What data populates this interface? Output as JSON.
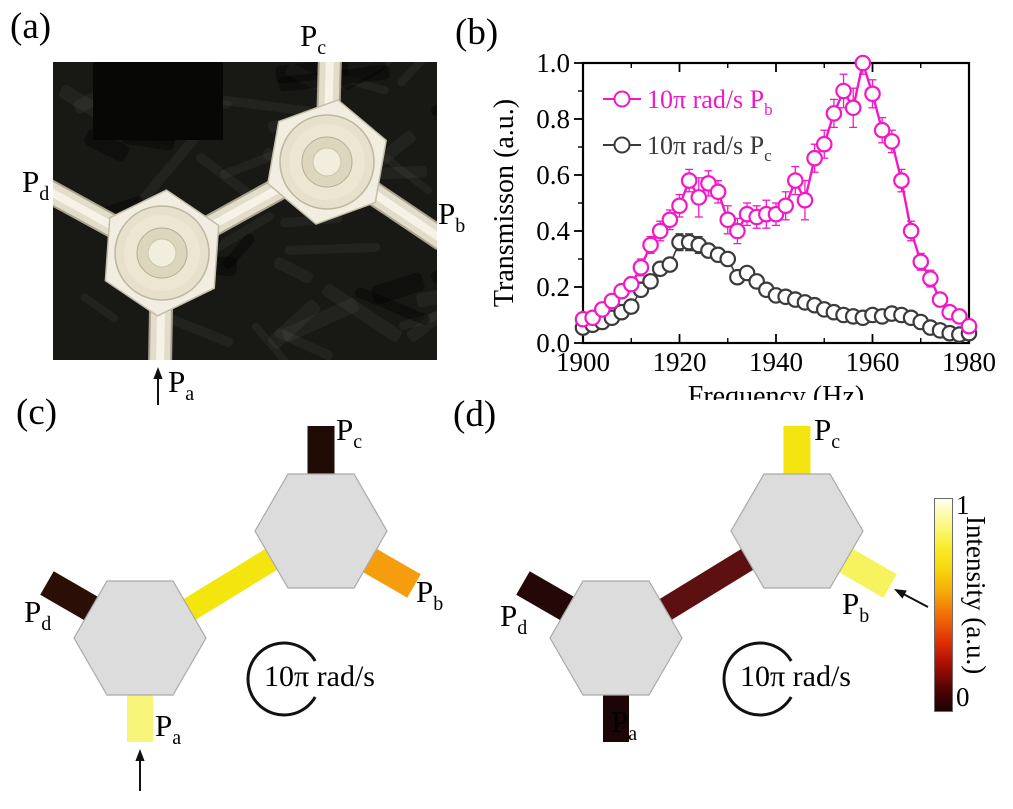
{
  "figure": {
    "panel_a": {
      "label": "(a)",
      "ports": {
        "pc": {
          "base": "P",
          "sub": "c"
        },
        "pd": {
          "base": "P",
          "sub": "d"
        },
        "pb": {
          "base": "P",
          "sub": "b"
        },
        "pa": {
          "base": "P",
          "sub": "a"
        }
      }
    },
    "panel_b": {
      "label": "(b)"
    },
    "panel_c": {
      "label": "(c)",
      "rotation_label": "10π rad/s",
      "hex_color": "#dcdcdc",
      "hex_stroke": "#a9a9a9",
      "link_color": "#f3e50d",
      "ports": {
        "pc": {
          "base": "P",
          "sub": "c",
          "color": "#200b06"
        },
        "pd": {
          "base": "P",
          "sub": "d",
          "color": "#2b0f07"
        },
        "pb": {
          "base": "P",
          "sub": "b",
          "color": "#f69d0e"
        },
        "pa": {
          "base": "P",
          "sub": "a",
          "color": "#f7f67b"
        }
      }
    },
    "panel_d": {
      "label": "(d)",
      "rotation_label": "10π rad/s",
      "hex_color": "#dcdcdc",
      "hex_stroke": "#a9a9a9",
      "link_color": "#5c1010",
      "ports": {
        "pc": {
          "base": "P",
          "sub": "c",
          "color": "#f3e412"
        },
        "pd": {
          "base": "P",
          "sub": "d",
          "color": "#260707"
        },
        "pb": {
          "base": "P",
          "sub": "b",
          "color": "#f6f35e"
        },
        "pa": {
          "base": "P",
          "sub": "a",
          "color": "#1c0505"
        }
      }
    },
    "colorbar": {
      "title": "Intensity (a.u.)",
      "top_tick": "1",
      "bottom_tick": "0",
      "gradient_top_to_bottom": [
        "#fffef2",
        "#fdf98e",
        "#f9ee2e",
        "#f6d60e",
        "#f5a807",
        "#ef6a06",
        "#e23305",
        "#a90f04",
        "#560404",
        "#1a0101"
      ]
    }
  },
  "chart_data": {
    "type": "line",
    "title": "",
    "xlabel": "Frequency (Hz)",
    "ylabel": "Transmisson (a.u.)",
    "xlim": [
      1900,
      1980
    ],
    "ylim": [
      0.0,
      1.0
    ],
    "grid": false,
    "legend_position": "top-left-inside",
    "x_tick_labels": [
      "1900",
      "1920",
      "1940",
      "1960",
      "1980"
    ],
    "x_major_ticks": [
      1900,
      1920,
      1940,
      1960,
      1980
    ],
    "x_minor_ticks": [
      1910,
      1930,
      1950,
      1970
    ],
    "y_tick_labels": [
      "0.0",
      "0.2",
      "0.4",
      "0.6",
      "0.8",
      "1.0"
    ],
    "y_major_ticks": [
      0.0,
      0.2,
      0.4,
      0.6,
      0.8,
      1.0
    ],
    "y_minor_ticks": [
      0.1,
      0.3,
      0.5,
      0.7,
      0.9
    ],
    "x": [
      1900,
      1902,
      1904,
      1906,
      1908,
      1910,
      1912,
      1914,
      1916,
      1918,
      1920,
      1922,
      1924,
      1926,
      1928,
      1930,
      1932,
      1934,
      1936,
      1938,
      1940,
      1942,
      1944,
      1946,
      1948,
      1950,
      1952,
      1954,
      1956,
      1958,
      1960,
      1962,
      1964,
      1966,
      1968,
      1970,
      1972,
      1974,
      1976,
      1978,
      1980
    ],
    "series": [
      {
        "name": "10π rad/s P_b",
        "label_base": "10π rad/s P",
        "label_sub": "b",
        "color": "#f318c6",
        "marker": "open-circle",
        "values": [
          0.085,
          0.09,
          0.12,
          0.15,
          0.185,
          0.21,
          0.27,
          0.35,
          0.4,
          0.44,
          0.49,
          0.58,
          0.52,
          0.57,
          0.54,
          0.44,
          0.4,
          0.46,
          0.45,
          0.46,
          0.46,
          0.49,
          0.58,
          0.51,
          0.66,
          0.71,
          0.82,
          0.9,
          0.84,
          1.0,
          0.89,
          0.76,
          0.72,
          0.58,
          0.4,
          0.29,
          0.23,
          0.155,
          0.11,
          0.095,
          0.06
        ],
        "errors": [
          0.015,
          0.015,
          0.02,
          0.02,
          0.02,
          0.025,
          0.03,
          0.03,
          0.035,
          0.035,
          0.04,
          0.04,
          0.07,
          0.045,
          0.04,
          0.05,
          0.045,
          0.04,
          0.04,
          0.05,
          0.04,
          0.05,
          0.05,
          0.07,
          0.05,
          0.05,
          0.05,
          0.06,
          0.07,
          0.04,
          0.05,
          0.045,
          0.04,
          0.04,
          0.035,
          0.03,
          0.03,
          0.025,
          0.02,
          0.02,
          0.015
        ]
      },
      {
        "name": "10π rad/s P_c",
        "label_base": "10π rad/s P",
        "label_sub": "c",
        "color": "#3a3a3a",
        "marker": "open-circle",
        "values": [
          0.055,
          0.065,
          0.075,
          0.09,
          0.11,
          0.13,
          0.19,
          0.22,
          0.265,
          0.28,
          0.36,
          0.36,
          0.35,
          0.33,
          0.315,
          0.3,
          0.235,
          0.25,
          0.22,
          0.19,
          0.17,
          0.165,
          0.155,
          0.145,
          0.135,
          0.12,
          0.11,
          0.1,
          0.095,
          0.09,
          0.1,
          0.095,
          0.105,
          0.1,
          0.09,
          0.075,
          0.055,
          0.045,
          0.035,
          0.03,
          0.035
        ],
        "errors": [
          0.01,
          0.01,
          0.01,
          0.01,
          0.015,
          0.015,
          0.02,
          0.02,
          0.02,
          0.02,
          0.03,
          0.03,
          0.03,
          0.025,
          0.025,
          0.02,
          0.02,
          0.02,
          0.02,
          0.015,
          0.015,
          0.015,
          0.015,
          0.012,
          0.012,
          0.01,
          0.01,
          0.01,
          0.01,
          0.01,
          0.01,
          0.01,
          0.01,
          0.01,
          0.01,
          0.01,
          0.01,
          0.008,
          0.008,
          0.008,
          0.008
        ]
      }
    ]
  }
}
